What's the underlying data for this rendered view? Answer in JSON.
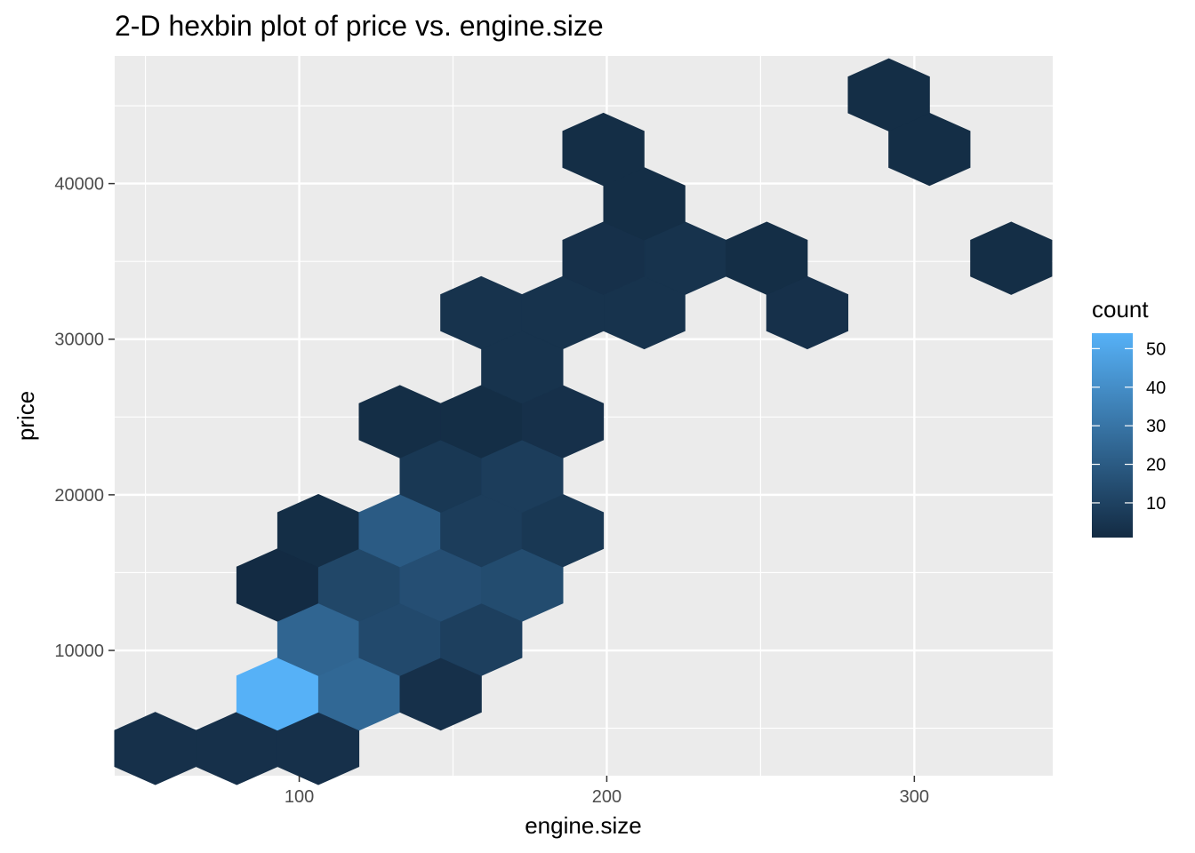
{
  "chart_data": {
    "type": "hexbin",
    "title": "2-D hexbin plot of price vs. engine.size",
    "xlabel": "engine.size",
    "ylabel": "price",
    "xlim": [
      40,
      345
    ],
    "ylim": [
      1950,
      48200
    ],
    "x_ticks": [
      100,
      200,
      300
    ],
    "y_ticks": [
      10000,
      20000,
      30000,
      40000
    ],
    "legend": {
      "title": "count",
      "position": "right",
      "range": [
        1,
        54
      ],
      "ticks": [
        10,
        20,
        30,
        40,
        50
      ],
      "color_low": "#132B43",
      "color_high": "#56B1F7"
    },
    "cells": [
      {
        "x": 53.2,
        "y": 3700,
        "count": 3
      },
      {
        "x": 79.7,
        "y": 3700,
        "count": 3
      },
      {
        "x": 106.2,
        "y": 3700,
        "count": 3
      },
      {
        "x": 92.9,
        "y": 7200,
        "count": 54
      },
      {
        "x": 119.5,
        "y": 7200,
        "count": 25
      },
      {
        "x": 146.0,
        "y": 7200,
        "count": 3
      },
      {
        "x": 106.2,
        "y": 10700,
        "count": 24
      },
      {
        "x": 132.7,
        "y": 10700,
        "count": 13
      },
      {
        "x": 159.2,
        "y": 10700,
        "count": 9
      },
      {
        "x": 92.9,
        "y": 14200,
        "count": 1
      },
      {
        "x": 119.5,
        "y": 14200,
        "count": 12
      },
      {
        "x": 146.0,
        "y": 14200,
        "count": 15
      },
      {
        "x": 172.5,
        "y": 14200,
        "count": 14
      },
      {
        "x": 106.2,
        "y": 17700,
        "count": 2
      },
      {
        "x": 132.7,
        "y": 17700,
        "count": 20
      },
      {
        "x": 159.2,
        "y": 17700,
        "count": 8
      },
      {
        "x": 185.7,
        "y": 17700,
        "count": 6
      },
      {
        "x": 146.0,
        "y": 21200,
        "count": 6
      },
      {
        "x": 172.5,
        "y": 21200,
        "count": 8
      },
      {
        "x": 132.7,
        "y": 24700,
        "count": 2
      },
      {
        "x": 159.2,
        "y": 24700,
        "count": 2
      },
      {
        "x": 185.7,
        "y": 24700,
        "count": 3
      },
      {
        "x": 172.5,
        "y": 28200,
        "count": 4
      },
      {
        "x": 159.2,
        "y": 31700,
        "count": 4
      },
      {
        "x": 185.7,
        "y": 31700,
        "count": 4
      },
      {
        "x": 212.2,
        "y": 31700,
        "count": 4
      },
      {
        "x": 265.2,
        "y": 31700,
        "count": 3
      },
      {
        "x": 198.9,
        "y": 35200,
        "count": 3
      },
      {
        "x": 225.5,
        "y": 35200,
        "count": 4
      },
      {
        "x": 252.0,
        "y": 35200,
        "count": 2
      },
      {
        "x": 331.5,
        "y": 35200,
        "count": 2
      },
      {
        "x": 212.2,
        "y": 38700,
        "count": 2
      },
      {
        "x": 198.9,
        "y": 42200,
        "count": 2
      },
      {
        "x": 304.9,
        "y": 42200,
        "count": 2
      },
      {
        "x": 291.7,
        "y": 45700,
        "count": 2
      }
    ]
  }
}
